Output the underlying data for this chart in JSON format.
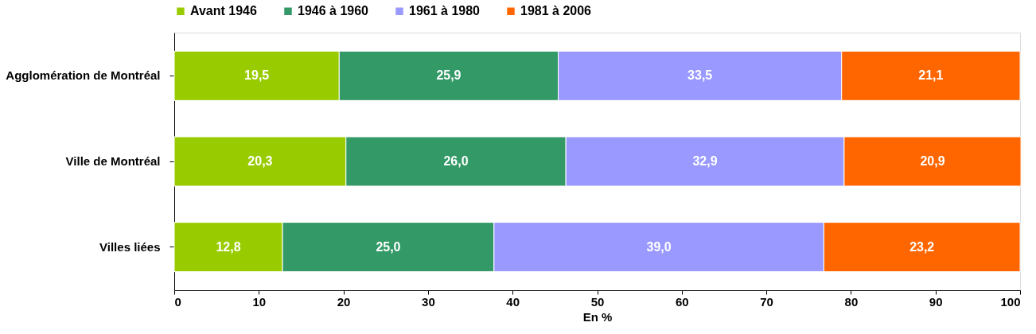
{
  "chart_data": {
    "type": "bar",
    "orientation": "horizontal",
    "stacked": true,
    "xlabel": "En %",
    "categories": [
      "Agglomération de Montréal",
      "Ville de Montréal",
      "Villes liées"
    ],
    "series": [
      {
        "name": "Avant 1946",
        "color": "#99cc00",
        "values": [
          19.5,
          20.3,
          12.8
        ],
        "value_labels": [
          "19,5",
          "20,3",
          "12,8"
        ]
      },
      {
        "name": "1946 à 1960",
        "color": "#339966",
        "values": [
          25.9,
          26.0,
          25.0
        ],
        "value_labels": [
          "25,9",
          "26,0",
          "25,0"
        ]
      },
      {
        "name": "1961 à 1980",
        "color": "#9999ff",
        "values": [
          33.5,
          32.9,
          39.0
        ],
        "value_labels": [
          "33,5",
          "32,9",
          "39,0"
        ]
      },
      {
        "name": "1981 à 2006",
        "color": "#ff6600",
        "values": [
          21.1,
          20.9,
          23.2
        ],
        "value_labels": [
          "21,1",
          "20,9",
          "23,2"
        ]
      }
    ],
    "xlim": [
      0,
      100
    ],
    "xticks": [
      0,
      10,
      20,
      30,
      40,
      50,
      60,
      70,
      80,
      90,
      100
    ],
    "grid": false,
    "legend": "top"
  }
}
